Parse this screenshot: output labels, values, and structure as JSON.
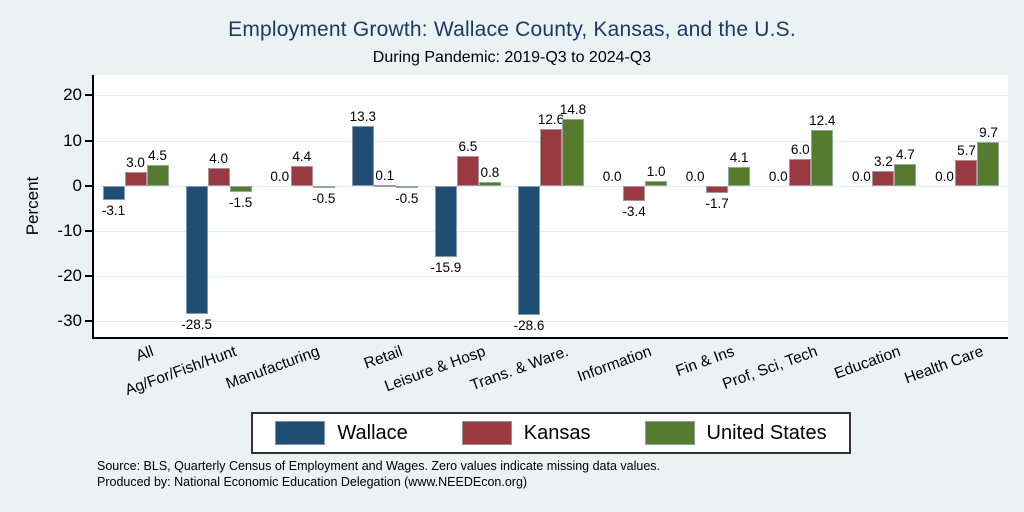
{
  "title": "Employment Growth: Wallace County, Kansas, and the U.S.",
  "subtitle": "During Pandemic: 2019-Q3 to 2024-Q3",
  "chart_data": {
    "type": "bar",
    "title": "Employment Growth: Wallace County, Kansas, and the U.S.",
    "subtitle": "During Pandemic: 2019-Q3 to 2024-Q3",
    "categories": [
      "All",
      "Ag/For/Fish/Hunt",
      "Manufacturing",
      "Retail",
      "Leisure & Hosp",
      "Trans. & Ware.",
      "Information",
      "Fin & Ins",
      "Prof, Sci, Tech",
      "Education",
      "Health Care"
    ],
    "series": [
      {
        "name": "Wallace",
        "color": "#1F4D73",
        "values": [
          -3.1,
          -28.5,
          0.0,
          13.3,
          -15.9,
          -28.6,
          0.0,
          0.0,
          0.0,
          0.0,
          0.0
        ]
      },
      {
        "name": "Kansas",
        "color": "#9A3A40",
        "values": [
          3.0,
          4.0,
          4.4,
          0.1,
          6.5,
          12.6,
          -3.4,
          -1.7,
          6.0,
          3.2,
          5.7
        ]
      },
      {
        "name": "United States",
        "color": "#567A2E",
        "values": [
          4.5,
          -1.5,
          -0.5,
          -0.5,
          0.8,
          14.8,
          1.0,
          4.1,
          12.4,
          4.7,
          9.7
        ]
      }
    ],
    "xlabel": "",
    "ylabel": "Percent",
    "yticks": [
      20,
      10,
      0,
      -10,
      -20,
      -30
    ],
    "ylim": [
      -33.5,
      24.5
    ],
    "grid": true,
    "value_labels_decimals": 1,
    "legend_position": "bottom",
    "note": "Zero values indicate missing data values"
  },
  "footer": {
    "source_line": "Source: BLS, Quarterly Census of Employment and Wages. Zero values indicate missing data values.",
    "produced_line": "Produced by: National Economic Education Delegation (www.NEEDEcon.org)"
  },
  "colors": {
    "background": "#EAF2F3",
    "plot_background": "#FFFFFF",
    "grid": "#E4EEF0",
    "axis": "#000000",
    "title_text": "#1F3864",
    "bar_outline": "rgba(170,190,198,0.7)"
  }
}
